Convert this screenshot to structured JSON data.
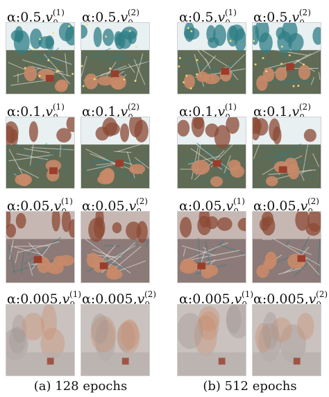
{
  "panels": [
    {
      "id": "a",
      "caption": "(a) 128 epochs",
      "rows": [
        {
          "alpha": "0.5",
          "items": [
            {
              "v": "v",
              "sub": "0",
              "sup": "(1)",
              "prefix": "α:0.5,"
            },
            {
              "v": "v",
              "sub": "0",
              "sup": "(2)",
              "prefix": "α:0.5,"
            }
          ]
        },
        {
          "alpha": "0.1",
          "items": [
            {
              "v": "v",
              "sub": "0",
              "sup": "(1)",
              "prefix": "α:0.1,"
            },
            {
              "v": "v",
              "sub": "0",
              "sup": "(2)",
              "prefix": "α:0.1,"
            }
          ]
        },
        {
          "alpha": "0.05",
          "items": [
            {
              "v": "v",
              "sub": "0",
              "sup": "(1)",
              "prefix": "α:0.05,"
            },
            {
              "v": "v",
              "sub": "0",
              "sup": "(2)",
              "prefix": "α:0.05,"
            }
          ]
        },
        {
          "alpha": "0.005",
          "items": [
            {
              "v": "v",
              "sub": "0",
              "sup": "(1)",
              "prefix": "α:0.005,"
            },
            {
              "v": "v",
              "sub": "0",
              "sup": "(2)",
              "prefix": "α:0.005,"
            }
          ]
        }
      ]
    },
    {
      "id": "b",
      "caption": "(b) 512 epochs",
      "rows": [
        {
          "alpha": "0.5",
          "items": [
            {
              "v": "v",
              "sub": "0",
              "sup": "(1)",
              "prefix": "α:0.5,"
            },
            {
              "v": "v",
              "sub": "0",
              "sup": "(2)",
              "prefix": "α:0.5,"
            }
          ]
        },
        {
          "alpha": "0.1",
          "items": [
            {
              "v": "v",
              "sub": "0",
              "sup": "(1)",
              "prefix": "α:0.1,"
            },
            {
              "v": "v",
              "sub": "0",
              "sup": "(2)",
              "prefix": "α:0.1,"
            }
          ]
        },
        {
          "alpha": "0.05",
          "items": [
            {
              "v": "v",
              "sub": "0",
              "sup": "(1)",
              "prefix": "α:0.05,"
            },
            {
              "v": "v",
              "sub": "0",
              "sup": "(2)",
              "prefix": "α:0.05,"
            }
          ]
        },
        {
          "alpha": "0.005",
          "items": [
            {
              "v": "v",
              "sub": "0",
              "sup": "(1)",
              "prefix": "α:0.005,"
            },
            {
              "v": "v",
              "sub": "0",
              "sup": "(2)",
              "prefix": "α:0.005,"
            }
          ]
        }
      ]
    }
  ],
  "palette": {
    "sky_high": "#e8f0f2",
    "sky_mid": "#b9c9cc",
    "teal": "#2f7d86",
    "haystack": "#8b4a34",
    "haystack_light": "#c98a68",
    "field": "#5f6b55",
    "barn": "#9a3d2c",
    "fog": "#c9c2bf",
    "fog_dark": "#9d9290"
  }
}
